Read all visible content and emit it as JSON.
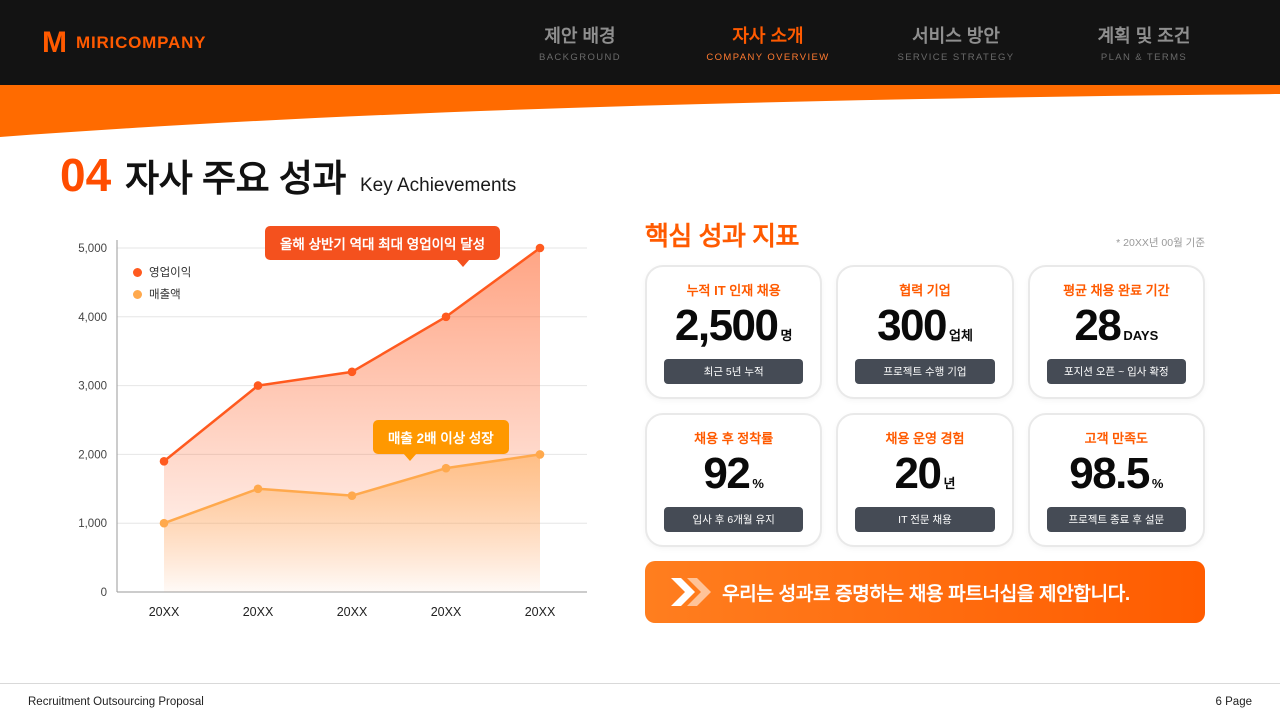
{
  "brand": {
    "name": "MIRICOMPANY",
    "logo_letter": "M"
  },
  "nav": [
    {
      "kr": "제안 배경",
      "en": "BACKGROUND",
      "active": false
    },
    {
      "kr": "자사 소개",
      "en": "COMPANY OVERVIEW",
      "active": true
    },
    {
      "kr": "서비스 방안",
      "en": "SERVICE STRATEGY",
      "active": false
    },
    {
      "kr": "계획 및 조건",
      "en": "PLAN & TERMS",
      "active": false
    }
  ],
  "page": {
    "number": "04",
    "title": "자사 주요 성과",
    "subtitle": "Key Achievements"
  },
  "chart_data": {
    "type": "line",
    "x": [
      "20XX",
      "20XX",
      "20XX",
      "20XX",
      "20XX"
    ],
    "series": [
      {
        "name": "영업이익",
        "color": "#FF5A1F",
        "values": [
          1900,
          3000,
          3200,
          4000,
          5000
        ]
      },
      {
        "name": "매출액",
        "color": "#FFA94D",
        "values": [
          1000,
          1500,
          1400,
          1800,
          2000
        ]
      }
    ],
    "ylim": [
      0,
      5000
    ],
    "yticks": [
      0,
      1000,
      2000,
      3000,
      4000,
      5000
    ],
    "grid": true,
    "legend_position": "top-left",
    "annotations": [
      {
        "text": "올해 상반기 역대 최대 영업이익 달성",
        "color": "#F4511E"
      },
      {
        "text": "매출 2배 이상 성장",
        "color": "#FF9800"
      }
    ]
  },
  "kpi": {
    "heading": "핵심 성과 지표",
    "note": "* 20XX년 00월 기준",
    "cards": [
      {
        "label": "누적 IT 인재 채용",
        "value": "2,500",
        "unit": "명",
        "badge": "최근 5년 누적"
      },
      {
        "label": "협력 기업",
        "value": "300",
        "unit": "업체",
        "badge": "프로젝트 수행 기업"
      },
      {
        "label": "평균 채용 완료 기간",
        "value": "28",
        "unit": "DAYS",
        "badge": "포지션 오픈 ~ 입사 확정"
      },
      {
        "label": "채용 후 정착률",
        "value": "92",
        "unit": "%",
        "badge": "입사 후 6개월 유지"
      },
      {
        "label": "채용 운영 경험",
        "value": "20",
        "unit": "년",
        "badge": "IT 전문 채용"
      },
      {
        "label": "고객 만족도",
        "value": "98.5",
        "unit": "%",
        "badge": "프로젝트 종료 후 설문"
      }
    ]
  },
  "banner": {
    "text": "우리는 성과로 증명하는 채용 파트너십을 제안합니다."
  },
  "footer": {
    "left": "Recruitment Outsourcing Proposal",
    "right": "6 Page"
  },
  "colors": {
    "accent": "#FF5A00",
    "header_bg": "#131313",
    "swoosh": "#FF6B00",
    "badge_bg": "#454B55",
    "banner": "#FF6B00"
  }
}
